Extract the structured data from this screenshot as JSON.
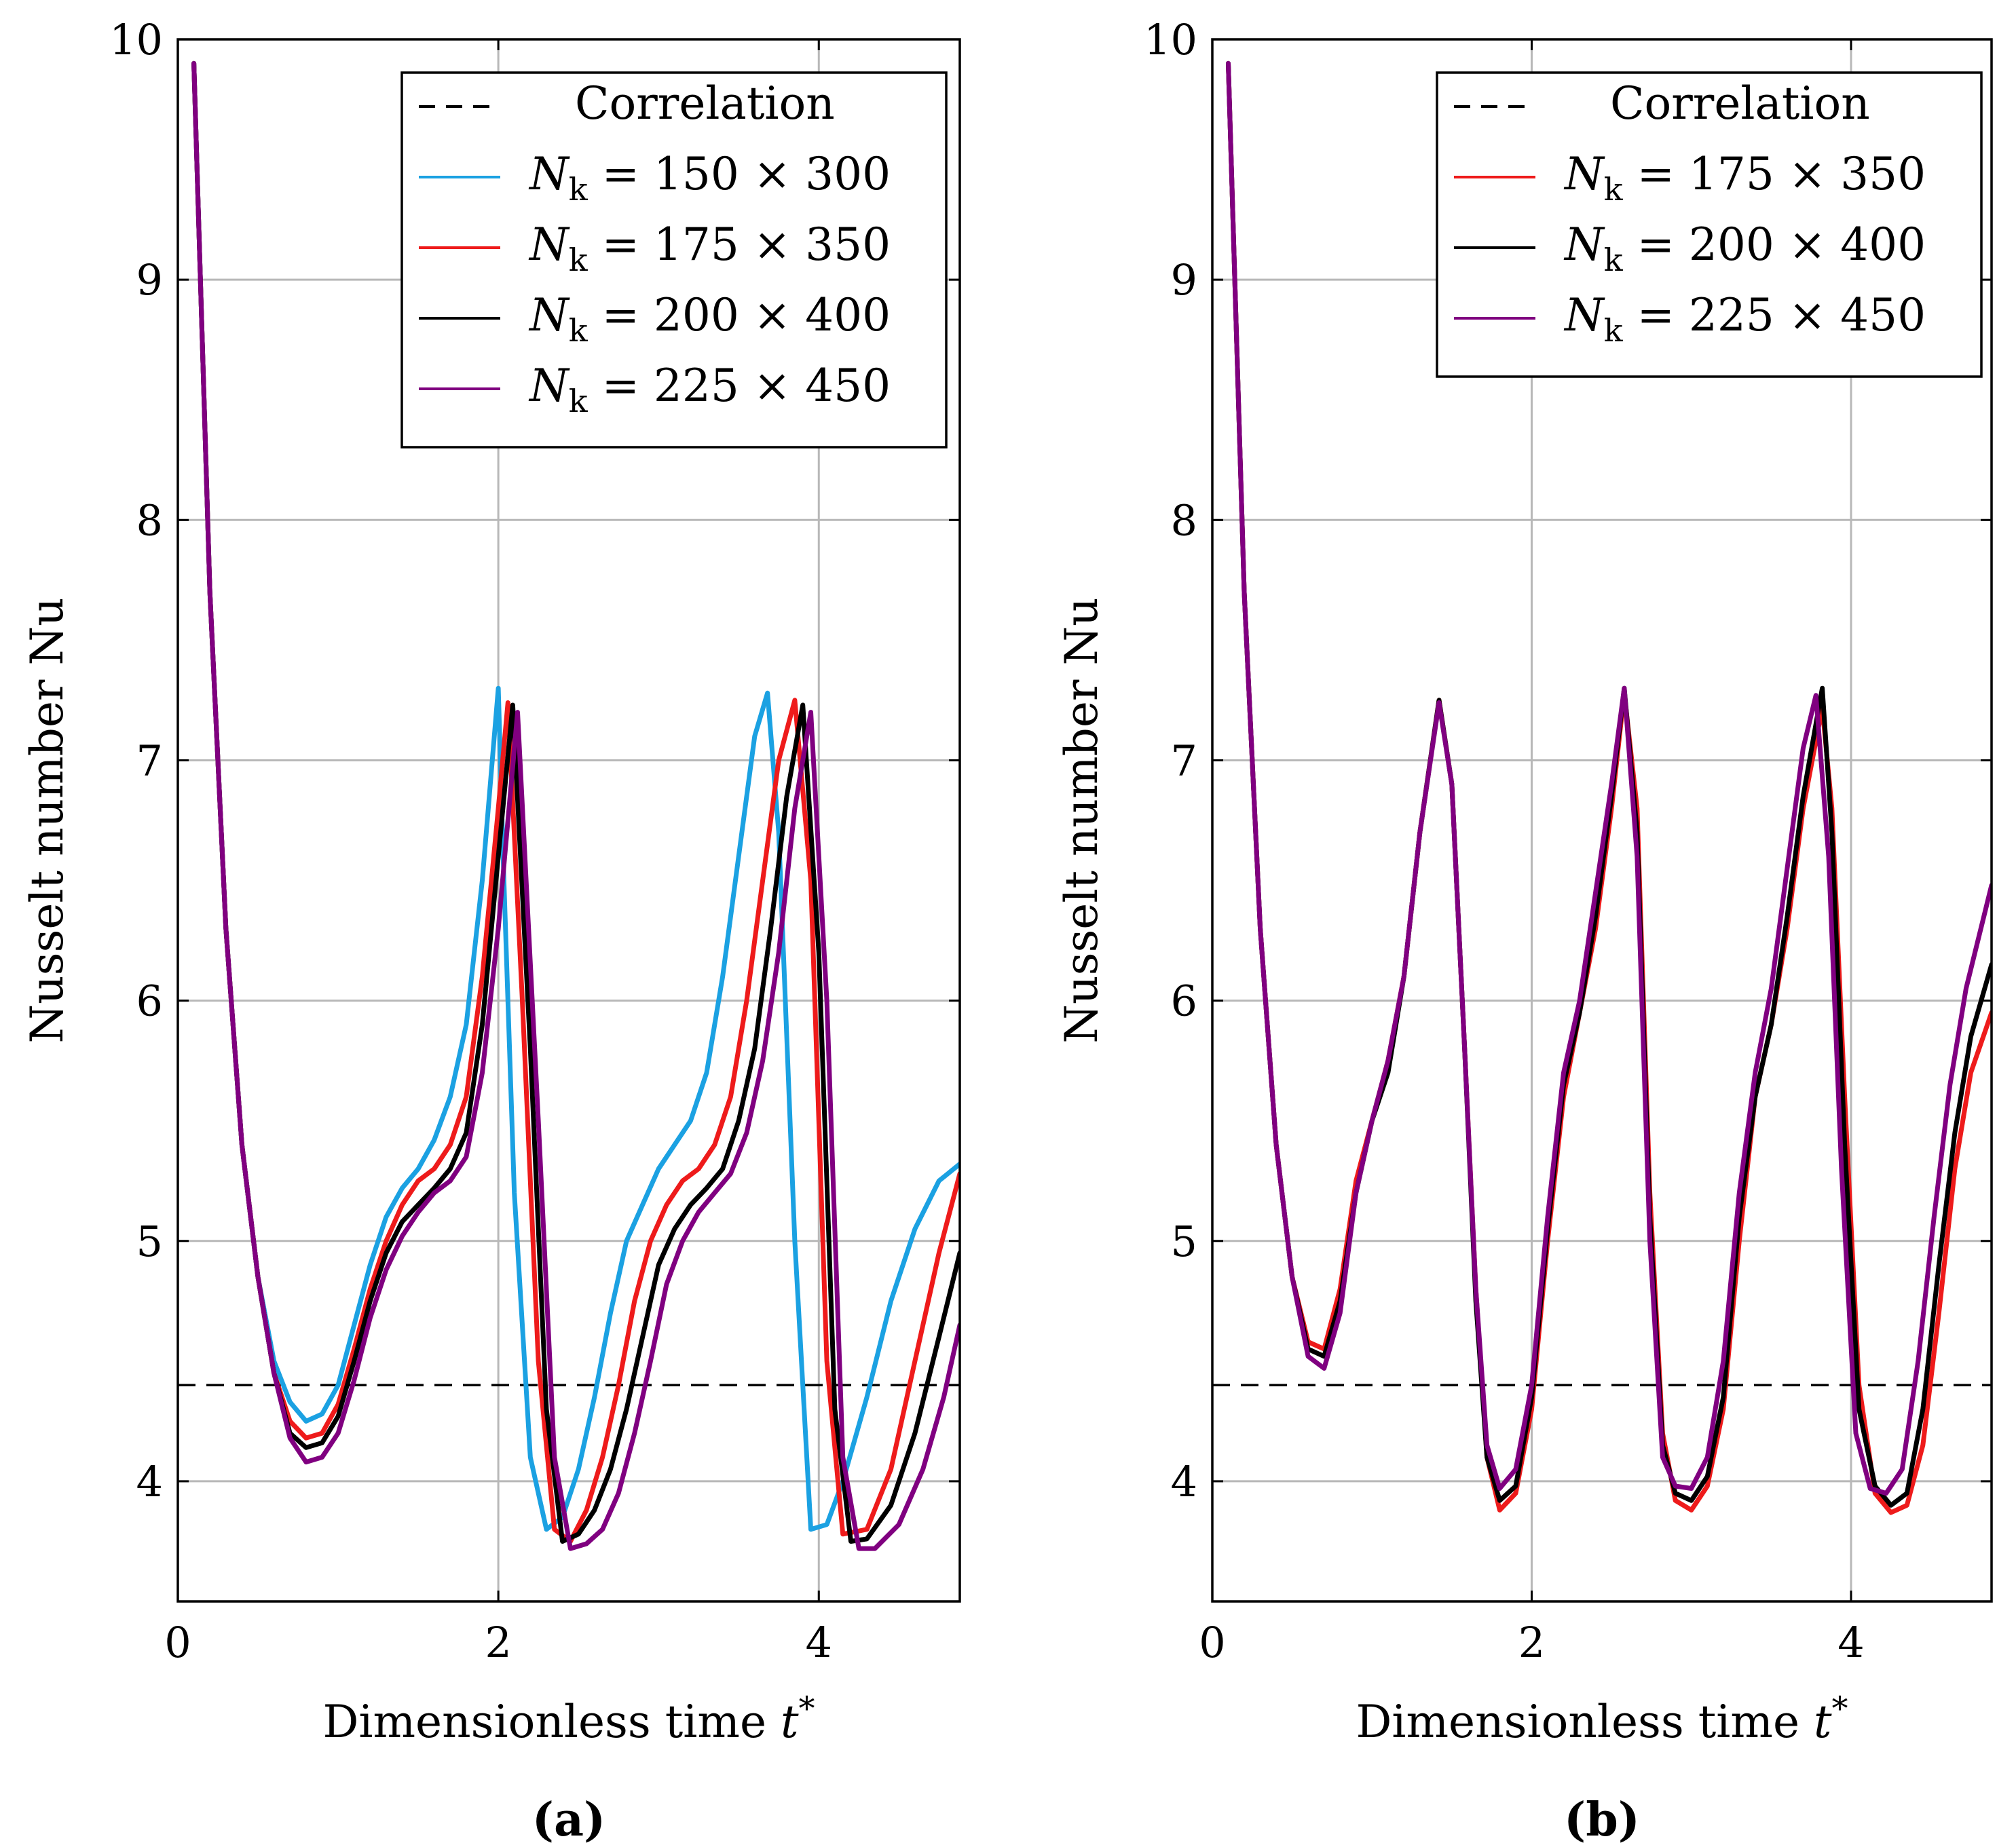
{
  "chart_data": [
    {
      "type": "line",
      "panel_label": "(a)",
      "xlabel": "Dimensionless time t*",
      "ylabel": "Nusselt number Nu",
      "xlim": [
        0,
        4.88
      ],
      "ylim": [
        3.5,
        10
      ],
      "xticks": [
        0,
        2,
        4
      ],
      "yticks": [
        4,
        5,
        6,
        7,
        8,
        9,
        10
      ],
      "grid": true,
      "legend_position": "top-right",
      "correlation": {
        "name": "Correlation",
        "value": 4.4,
        "style": "dashed",
        "color": "#000000"
      },
      "series": [
        {
          "name": "Nk = 150 × 300",
          "label_main": "N",
          "label_sub": "k",
          "label_rest": " = 150 × 300",
          "color": "#1BA1E2",
          "x": [
            0.1,
            0.2,
            0.3,
            0.4,
            0.5,
            0.6,
            0.7,
            0.8,
            0.9,
            1.0,
            1.1,
            1.2,
            1.3,
            1.4,
            1.5,
            1.6,
            1.7,
            1.8,
            1.9,
            2.0,
            2.03,
            2.1,
            2.2,
            2.3,
            2.4,
            2.5,
            2.6,
            2.7,
            2.8,
            2.9,
            3.0,
            3.1,
            3.2,
            3.3,
            3.4,
            3.5,
            3.6,
            3.68,
            3.75,
            3.85,
            3.95,
            4.05,
            4.15,
            4.3,
            4.45,
            4.6,
            4.75,
            4.88
          ],
          "y": [
            9.9,
            7.7,
            6.3,
            5.4,
            4.85,
            4.5,
            4.33,
            4.25,
            4.28,
            4.4,
            4.65,
            4.9,
            5.1,
            5.22,
            5.3,
            5.42,
            5.6,
            5.9,
            6.5,
            7.3,
            6.6,
            5.2,
            4.1,
            3.8,
            3.85,
            4.05,
            4.35,
            4.7,
            5.0,
            5.15,
            5.3,
            5.4,
            5.5,
            5.7,
            6.1,
            6.6,
            7.1,
            7.28,
            6.7,
            5.0,
            3.8,
            3.82,
            4.0,
            4.35,
            4.75,
            5.05,
            5.25,
            5.32
          ]
        },
        {
          "name": "Nk = 175 × 350",
          "label_main": "N",
          "label_sub": "k",
          "label_rest": " = 175 × 350",
          "color": "#EE1B1B",
          "x": [
            0.1,
            0.2,
            0.3,
            0.4,
            0.5,
            0.6,
            0.7,
            0.8,
            0.9,
            1.0,
            1.1,
            1.2,
            1.3,
            1.4,
            1.5,
            1.6,
            1.7,
            1.8,
            1.9,
            2.0,
            2.06,
            2.15,
            2.25,
            2.35,
            2.45,
            2.55,
            2.65,
            2.75,
            2.85,
            2.95,
            3.05,
            3.15,
            3.25,
            3.35,
            3.45,
            3.55,
            3.65,
            3.75,
            3.85,
            3.95,
            4.05,
            4.15,
            4.3,
            4.45,
            4.6,
            4.75,
            4.88
          ],
          "y": [
            9.9,
            7.7,
            6.3,
            5.4,
            4.85,
            4.45,
            4.25,
            4.18,
            4.2,
            4.32,
            4.55,
            4.8,
            5.0,
            5.15,
            5.25,
            5.3,
            5.4,
            5.6,
            6.1,
            6.8,
            7.24,
            6.0,
            4.5,
            3.8,
            3.75,
            3.88,
            4.1,
            4.4,
            4.75,
            5.0,
            5.15,
            5.25,
            5.3,
            5.4,
            5.6,
            6.0,
            6.5,
            7.0,
            7.25,
            6.5,
            4.5,
            3.78,
            3.8,
            4.05,
            4.5,
            4.95,
            5.28
          ]
        },
        {
          "name": "Nk = 200 × 400",
          "label_main": "N",
          "label_sub": "k",
          "label_rest": " = 200 × 400",
          "color": "#000000",
          "x": [
            0.1,
            0.2,
            0.3,
            0.4,
            0.5,
            0.6,
            0.7,
            0.8,
            0.9,
            1.0,
            1.1,
            1.2,
            1.3,
            1.4,
            1.5,
            1.6,
            1.7,
            1.8,
            1.9,
            2.0,
            2.09,
            2.2,
            2.3,
            2.4,
            2.5,
            2.6,
            2.7,
            2.8,
            2.9,
            3.0,
            3.1,
            3.2,
            3.3,
            3.4,
            3.5,
            3.6,
            3.7,
            3.8,
            3.9,
            4.0,
            4.1,
            4.2,
            4.3,
            4.45,
            4.6,
            4.75,
            4.88
          ],
          "y": [
            9.9,
            7.7,
            6.3,
            5.4,
            4.85,
            4.45,
            4.2,
            4.14,
            4.16,
            4.27,
            4.5,
            4.75,
            4.95,
            5.08,
            5.15,
            5.22,
            5.3,
            5.45,
            5.9,
            6.6,
            7.23,
            5.8,
            4.3,
            3.75,
            3.78,
            3.88,
            4.05,
            4.3,
            4.6,
            4.9,
            5.05,
            5.15,
            5.22,
            5.3,
            5.5,
            5.8,
            6.3,
            6.85,
            7.23,
            6.2,
            4.3,
            3.75,
            3.76,
            3.9,
            4.2,
            4.6,
            4.95
          ]
        },
        {
          "name": "Nk = 225 × 450",
          "label_main": "N",
          "label_sub": "k",
          "label_rest": " = 225 × 450",
          "color": "#800080",
          "x": [
            0.1,
            0.2,
            0.3,
            0.4,
            0.5,
            0.6,
            0.7,
            0.8,
            0.9,
            1.0,
            1.1,
            1.2,
            1.3,
            1.4,
            1.5,
            1.6,
            1.7,
            1.8,
            1.9,
            2.0,
            2.12,
            2.25,
            2.35,
            2.45,
            2.55,
            2.65,
            2.75,
            2.85,
            2.95,
            3.05,
            3.15,
            3.25,
            3.35,
            3.45,
            3.55,
            3.65,
            3.75,
            3.85,
            3.95,
            4.05,
            4.15,
            4.25,
            4.35,
            4.5,
            4.65,
            4.78,
            4.88
          ],
          "y": [
            9.9,
            7.7,
            6.3,
            5.4,
            4.85,
            4.45,
            4.18,
            4.08,
            4.1,
            4.2,
            4.42,
            4.68,
            4.88,
            5.02,
            5.12,
            5.2,
            5.25,
            5.35,
            5.7,
            6.3,
            7.2,
            5.5,
            4.1,
            3.72,
            3.74,
            3.8,
            3.95,
            4.2,
            4.5,
            4.82,
            5.0,
            5.12,
            5.2,
            5.28,
            5.45,
            5.75,
            6.2,
            6.8,
            7.2,
            6.0,
            4.1,
            3.72,
            3.72,
            3.82,
            4.05,
            4.35,
            4.65
          ]
        }
      ]
    },
    {
      "type": "line",
      "panel_label": "(b)",
      "xlabel": "Dimensionless time t*",
      "ylabel": "Nusselt number Nu",
      "xlim": [
        0,
        4.88
      ],
      "ylim": [
        3.5,
        10
      ],
      "xticks": [
        0,
        2,
        4
      ],
      "yticks": [
        4,
        5,
        6,
        7,
        8,
        9,
        10
      ],
      "grid": true,
      "legend_position": "top-right",
      "correlation": {
        "name": "Correlation",
        "value": 4.4,
        "style": "dashed",
        "color": "#000000"
      },
      "series": [
        {
          "name": "Nk = 175 × 350",
          "label_main": "N",
          "label_sub": "k",
          "label_rest": " = 175 × 350",
          "color": "#EE1B1B",
          "x": [
            0.1,
            0.2,
            0.3,
            0.4,
            0.5,
            0.6,
            0.7,
            0.8,
            0.9,
            1.0,
            1.1,
            1.2,
            1.3,
            1.42,
            1.5,
            1.58,
            1.65,
            1.72,
            1.8,
            1.9,
            2.0,
            2.1,
            2.2,
            2.3,
            2.4,
            2.5,
            2.58,
            2.66,
            2.74,
            2.82,
            2.9,
            3.0,
            3.1,
            3.2,
            3.3,
            3.4,
            3.5,
            3.6,
            3.7,
            3.82,
            3.88,
            3.96,
            4.05,
            4.15,
            4.25,
            4.35,
            4.45,
            4.55,
            4.65,
            4.75,
            4.88
          ],
          "y": [
            9.9,
            7.7,
            6.3,
            5.4,
            4.85,
            4.58,
            4.55,
            4.8,
            5.25,
            5.5,
            5.75,
            6.1,
            6.7,
            7.25,
            6.9,
            5.8,
            4.8,
            4.1,
            3.88,
            3.95,
            4.3,
            5.0,
            5.6,
            5.95,
            6.3,
            6.8,
            7.28,
            6.8,
            5.2,
            4.2,
            3.92,
            3.88,
            3.98,
            4.3,
            5.0,
            5.6,
            5.9,
            6.3,
            6.8,
            7.22,
            6.8,
            5.6,
            4.4,
            3.95,
            3.87,
            3.9,
            4.15,
            4.7,
            5.3,
            5.7,
            5.95
          ]
        },
        {
          "name": "Nk = 200 × 400",
          "label_main": "N",
          "label_sub": "k",
          "label_rest": " = 200 × 400",
          "color": "#000000",
          "x": [
            0.1,
            0.2,
            0.3,
            0.4,
            0.5,
            0.6,
            0.7,
            0.8,
            0.9,
            1.0,
            1.1,
            1.2,
            1.3,
            1.42,
            1.5,
            1.58,
            1.65,
            1.72,
            1.8,
            1.9,
            2.0,
            2.1,
            2.2,
            2.3,
            2.4,
            2.5,
            2.58,
            2.66,
            2.74,
            2.82,
            2.9,
            3.0,
            3.1,
            3.2,
            3.3,
            3.4,
            3.5,
            3.6,
            3.7,
            3.82,
            3.88,
            3.96,
            4.05,
            4.15,
            4.25,
            4.35,
            4.45,
            4.55,
            4.65,
            4.75,
            4.88
          ],
          "y": [
            9.9,
            7.7,
            6.3,
            5.4,
            4.85,
            4.55,
            4.52,
            4.75,
            5.2,
            5.5,
            5.7,
            6.1,
            6.7,
            7.25,
            6.9,
            5.8,
            4.75,
            4.1,
            3.92,
            3.98,
            4.35,
            5.05,
            5.65,
            5.95,
            6.35,
            6.85,
            7.3,
            6.7,
            5.1,
            4.15,
            3.95,
            3.92,
            4.02,
            4.35,
            5.1,
            5.6,
            5.9,
            6.35,
            6.85,
            7.3,
            6.7,
            5.4,
            4.3,
            3.98,
            3.9,
            3.95,
            4.3,
            4.9,
            5.45,
            5.85,
            6.15
          ]
        },
        {
          "name": "Nk = 225 × 450",
          "label_main": "N",
          "label_sub": "k",
          "label_rest": " = 225 × 450",
          "color": "#800080",
          "x": [
            0.1,
            0.2,
            0.3,
            0.4,
            0.5,
            0.6,
            0.7,
            0.8,
            0.9,
            1.0,
            1.1,
            1.2,
            1.3,
            1.42,
            1.5,
            1.58,
            1.65,
            1.72,
            1.8,
            1.9,
            2.0,
            2.1,
            2.2,
            2.3,
            2.4,
            2.5,
            2.58,
            2.66,
            2.74,
            2.82,
            2.9,
            3.0,
            3.1,
            3.2,
            3.3,
            3.4,
            3.5,
            3.6,
            3.7,
            3.78,
            3.86,
            3.94,
            4.03,
            4.12,
            4.22,
            4.32,
            4.42,
            4.52,
            4.62,
            4.72,
            4.88
          ],
          "y": [
            9.9,
            7.7,
            6.3,
            5.4,
            4.85,
            4.52,
            4.47,
            4.7,
            5.2,
            5.5,
            5.75,
            6.1,
            6.7,
            7.24,
            6.9,
            5.8,
            4.8,
            4.15,
            3.97,
            4.05,
            4.4,
            5.1,
            5.7,
            6.0,
            6.45,
            6.9,
            7.3,
            6.6,
            5.0,
            4.1,
            3.98,
            3.97,
            4.1,
            4.5,
            5.2,
            5.7,
            6.05,
            6.55,
            7.05,
            7.27,
            6.6,
            5.3,
            4.2,
            3.97,
            3.95,
            4.05,
            4.5,
            5.1,
            5.65,
            6.05,
            6.48
          ]
        }
      ]
    }
  ]
}
